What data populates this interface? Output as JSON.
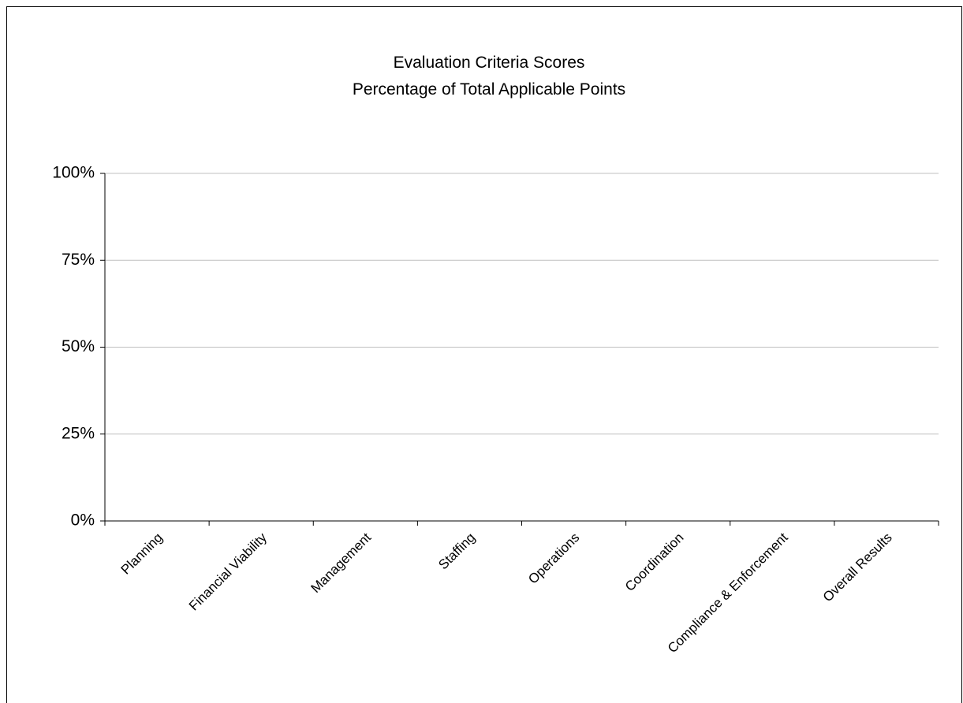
{
  "chart_data": {
    "type": "bar",
    "title": "Evaluation Criteria Scores",
    "subtitle": "Percentage of Total Applicable Points",
    "categories": [
      "Planning",
      "Financial Viability",
      "Management",
      "Staffing",
      "Operations",
      "Coordination",
      "Compliance & Enforcement",
      "Overall Results"
    ],
    "values": [
      null,
      null,
      null,
      null,
      null,
      null,
      null,
      null
    ],
    "ylim": [
      0,
      100
    ],
    "yticks": [
      {
        "value": 0,
        "label": "0%"
      },
      {
        "value": 25,
        "label": "25%"
      },
      {
        "value": 50,
        "label": "50%"
      },
      {
        "value": 75,
        "label": "75%"
      },
      {
        "value": 100,
        "label": "100%"
      }
    ],
    "grid": true
  }
}
